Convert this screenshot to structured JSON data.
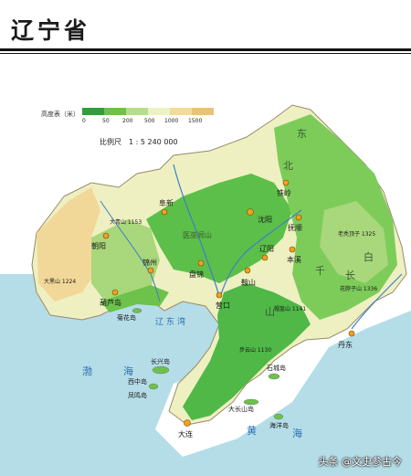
{
  "map": {
    "title": "辽宁省",
    "legend": {
      "title": "高度表（米）",
      "ticks": [
        "0",
        "50",
        "200",
        "500",
        "1000",
        "1500"
      ],
      "colors": [
        "#2f9f3a",
        "#6cc24a",
        "#b7dd8a",
        "#eef2c2",
        "#f3dc9a",
        "#e9c27a"
      ]
    },
    "scale": "比例尺　1 : 5 240 000",
    "colors": {
      "sea": "#b5dde8",
      "lowland": "#5cbf49",
      "hill": "#a9d77b",
      "upland": "#eef0c2",
      "mountain": "#f2d898",
      "peak": "#e4b870",
      "river": "#3f7fc7",
      "city": "#f0a020"
    },
    "cities": [
      {
        "name": "沈阳"
      },
      {
        "name": "铁岭"
      },
      {
        "name": "抚顺"
      },
      {
        "name": "本溪"
      },
      {
        "name": "辽阳"
      },
      {
        "name": "鞍山"
      },
      {
        "name": "丹东"
      },
      {
        "name": "营口"
      },
      {
        "name": "盘锦"
      },
      {
        "name": "锦州"
      },
      {
        "name": "葫芦岛"
      },
      {
        "name": "朝阳"
      },
      {
        "name": "阜新"
      },
      {
        "name": "大连"
      }
    ],
    "seas": [
      "辽东湾",
      "渤",
      "海",
      "黄",
      "海"
    ],
    "regions": [
      "北",
      "东",
      "千",
      "山",
      "长",
      "白",
      "医巫闾山"
    ],
    "islands": [
      "菊花岛",
      "长兴岛",
      "西中岛",
      "凤鸣岛",
      "石城岛",
      "海洋岛",
      "大长山岛"
    ],
    "peaks": [
      "大青山 1153",
      "老秃顶子 1325",
      "花脖子山 1336",
      "大黑山 1224",
      "步云山 1130",
      "帽盔山 1141"
    ],
    "watermark": "头条 @文史参古今"
  }
}
